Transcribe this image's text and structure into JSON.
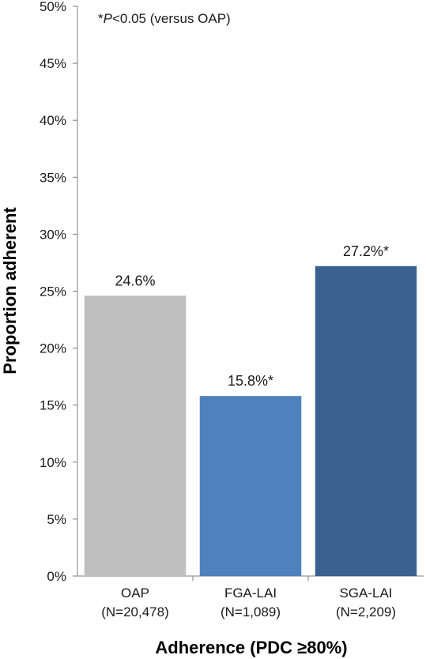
{
  "chart_data": {
    "type": "bar",
    "categories": [
      "OAP",
      "FGA-LAI",
      "SGA-LAI"
    ],
    "category_sublabels": [
      "(N=20,478)",
      "(N=1,089)",
      "(N=2,209)"
    ],
    "values": [
      24.6,
      15.8,
      27.2
    ],
    "data_labels": [
      "24.6%",
      "15.8%*",
      "27.2%*"
    ],
    "colors": [
      "#bfbfbf",
      "#4f81bd",
      "#3a6190"
    ],
    "ylabel": "Proportion adherent",
    "xlabel": "Adherence (PDC ≥80%)",
    "ylim": [
      0,
      50
    ],
    "yticks": [
      0,
      5,
      10,
      15,
      20,
      25,
      30,
      35,
      40,
      45,
      50
    ],
    "ytick_labels": [
      "0%",
      "5%",
      "10%",
      "15%",
      "20%",
      "25%",
      "30%",
      "35%",
      "40%",
      "45%",
      "50%"
    ],
    "annotation": {
      "prefix": "*",
      "italic": "P",
      "suffix": "<0.05 (versus OAP)"
    },
    "grid": false,
    "legend": "none"
  }
}
